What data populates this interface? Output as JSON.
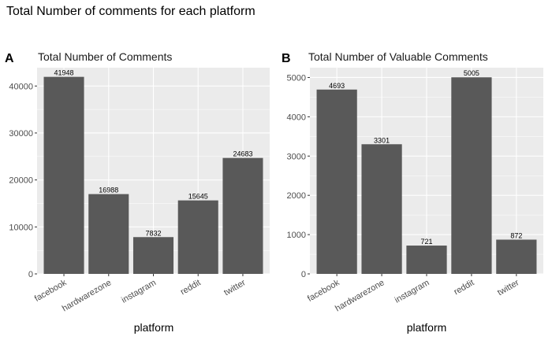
{
  "figure_title": "Total Number of comments for each platform",
  "chart_data": [
    {
      "type": "bar",
      "tag": "A",
      "title": "Total Number of Comments",
      "xlabel": "platform",
      "ylabel": "",
      "categories": [
        "facebook",
        "hardwarezone",
        "instagram",
        "reddit",
        "twitter"
      ],
      "values": [
        41948,
        16988,
        7832,
        15645,
        24683
      ],
      "ylim": [
        0,
        43900
      ],
      "yticks": [
        0,
        10000,
        20000,
        30000,
        40000
      ],
      "grid": true,
      "bar_color": "#595959",
      "panel_bg": "#ebebeb"
    },
    {
      "type": "bar",
      "tag": "B",
      "title": "Total Number of Valuable Comments",
      "xlabel": "platform",
      "ylabel": "",
      "categories": [
        "facebook",
        "hardwarezone",
        "instagram",
        "reddit",
        "twitter"
      ],
      "values": [
        4693,
        3301,
        721,
        5005,
        872
      ],
      "ylim": [
        0,
        5250
      ],
      "yticks": [
        0,
        1000,
        2000,
        3000,
        4000,
        5000
      ],
      "grid": true,
      "bar_color": "#595959",
      "panel_bg": "#ebebeb"
    }
  ]
}
